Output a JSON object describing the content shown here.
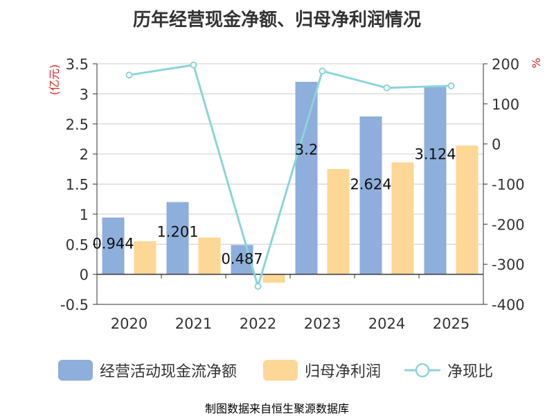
{
  "chart_data": {
    "type": "bar",
    "title": "历年经营现金净额、归母净利润情况",
    "categories": [
      "2020",
      "2021",
      "2022",
      "2023",
      "2024",
      "2025"
    ],
    "series": [
      {
        "name": "经营活动现金流净额",
        "axis": "left",
        "values": [
          0.944,
          1.201,
          0.487,
          3.2,
          2.624,
          3.124
        ],
        "labels": [
          "0.944",
          "1.201",
          "0.487",
          "3.2",
          "2.624",
          "3.124"
        ],
        "color": "#8eaedb"
      },
      {
        "name": "归母净利润",
        "axis": "left",
        "values": [
          0.55,
          0.61,
          -0.14,
          1.75,
          1.86,
          2.14
        ],
        "color": "#fdd796"
      },
      {
        "name": "净现比",
        "type": "line",
        "axis": "right",
        "values": [
          172,
          197,
          -355,
          182,
          140,
          145
        ],
        "color": "#8dd3db"
      }
    ],
    "y_left": {
      "label": "(亿元)",
      "min": -0.5,
      "max": 3.5,
      "ticks": [
        "-0.5",
        "0",
        "0.5",
        "1",
        "1.5",
        "2",
        "2.5",
        "3",
        "3.5"
      ]
    },
    "y_right": {
      "label": "%",
      "min": -400,
      "max": 200,
      "ticks": [
        "-400",
        "-300",
        "-200",
        "-100",
        "0",
        "100",
        "200"
      ]
    },
    "grid": true,
    "legend_position": "bottom"
  },
  "footer_text": "制图数据来自恒生聚源数据库",
  "colors": {
    "axis_label_red": "#dd2222",
    "footer": "#c8a040",
    "grid": "#cccccc",
    "text": "#333333"
  }
}
